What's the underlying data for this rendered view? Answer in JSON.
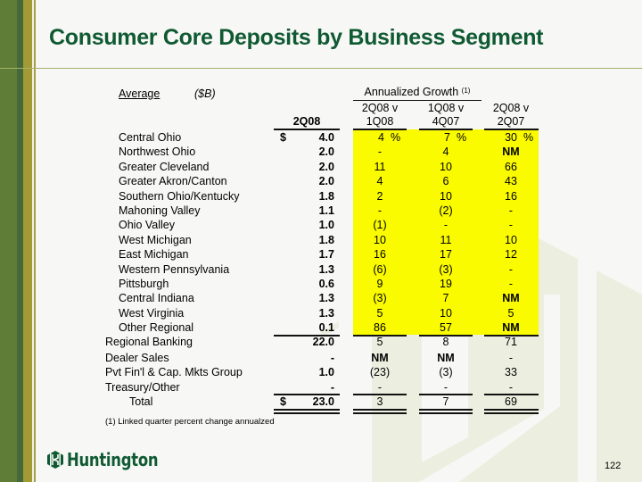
{
  "slide": {
    "title": "Consumer Core Deposits by Business Segment",
    "page_number": "122",
    "logo_text": "Huntington",
    "colors": {
      "title": "#0f5a32",
      "highlight": "#fbfb00",
      "sidebar_green": "#5f7d36",
      "sidebar_olive": "#a19a35"
    }
  },
  "table": {
    "label_average": "Average",
    "label_units": "($B)",
    "group_header": "Annualized Growth",
    "group_footnote_mark": "(1)",
    "col_headers": [
      {
        "line1": "",
        "line2": "2Q08"
      },
      {
        "line1": "2Q08 v",
        "line2": "1Q08"
      },
      {
        "line1": "1Q08 v",
        "line2": "4Q07"
      },
      {
        "line1": "2Q08 v",
        "line2": "2Q07"
      }
    ],
    "currency_symbol": "$",
    "percent_symbol": "%",
    "rows": [
      {
        "name": "Central Ohio",
        "value": "4.0",
        "g1": "4",
        "g2": "7",
        "g3": "30"
      },
      {
        "name": "Northwest Ohio",
        "value": "2.0",
        "g1": "-",
        "g2": "4",
        "g3": "NM"
      },
      {
        "name": "Greater Cleveland",
        "value": "2.0",
        "g1": "11",
        "g2": "10",
        "g3": "66"
      },
      {
        "name": "Greater Akron/Canton",
        "value": "2.0",
        "g1": "4",
        "g2": "6",
        "g3": "43"
      },
      {
        "name": "Southern Ohio/Kentucky",
        "value": "1.8",
        "g1": "2",
        "g2": "10",
        "g3": "16"
      },
      {
        "name": "Mahoning Valley",
        "value": "1.1",
        "g1": "-",
        "g2": "(2)",
        "g3": "-"
      },
      {
        "name": "Ohio Valley",
        "value": "1.0",
        "g1": "(1)",
        "g2": "-",
        "g3": "-"
      },
      {
        "name": "West Michigan",
        "value": "1.8",
        "g1": "10",
        "g2": "11",
        "g3": "10"
      },
      {
        "name": "East Michigan",
        "value": "1.7",
        "g1": "16",
        "g2": "17",
        "g3": "12"
      },
      {
        "name": "Western Pennsylvania",
        "value": "1.3",
        "g1": "(6)",
        "g2": "(3)",
        "g3": "-"
      },
      {
        "name": "Pittsburgh",
        "value": "0.6",
        "g1": "9",
        "g2": "19",
        "g3": "-"
      },
      {
        "name": "Central Indiana",
        "value": "1.3",
        "g1": "(3)",
        "g2": "7",
        "g3": "NM"
      },
      {
        "name": "West Virginia",
        "value": "1.3",
        "g1": "5",
        "g2": "10",
        "g3": "5"
      },
      {
        "name": "Other Regional",
        "value": "0.1",
        "g1": "86",
        "g2": "57",
        "g3": "NM"
      }
    ],
    "summary_rows": [
      {
        "name": "Regional Banking",
        "value": "22.0",
        "g1": "5",
        "g2": "8",
        "g3": "71"
      },
      {
        "name": "Dealer Sales",
        "value": "-",
        "g1": "NM",
        "g2": "NM",
        "g3": "-"
      },
      {
        "name": "Pvt Fin'l & Cap. Mkts Group",
        "value": "1.0",
        "g1": "(23)",
        "g2": "(3)",
        "g3": "33"
      },
      {
        "name": "Treasury/Other",
        "value": "-",
        "g1": "-",
        "g2": "-",
        "g3": "-"
      }
    ],
    "total": {
      "name": "Total",
      "value": "23.0",
      "g1": "3",
      "g2": "7",
      "g3": "69"
    },
    "footnote": "(1)  Linked quarter percent change annualzed"
  }
}
